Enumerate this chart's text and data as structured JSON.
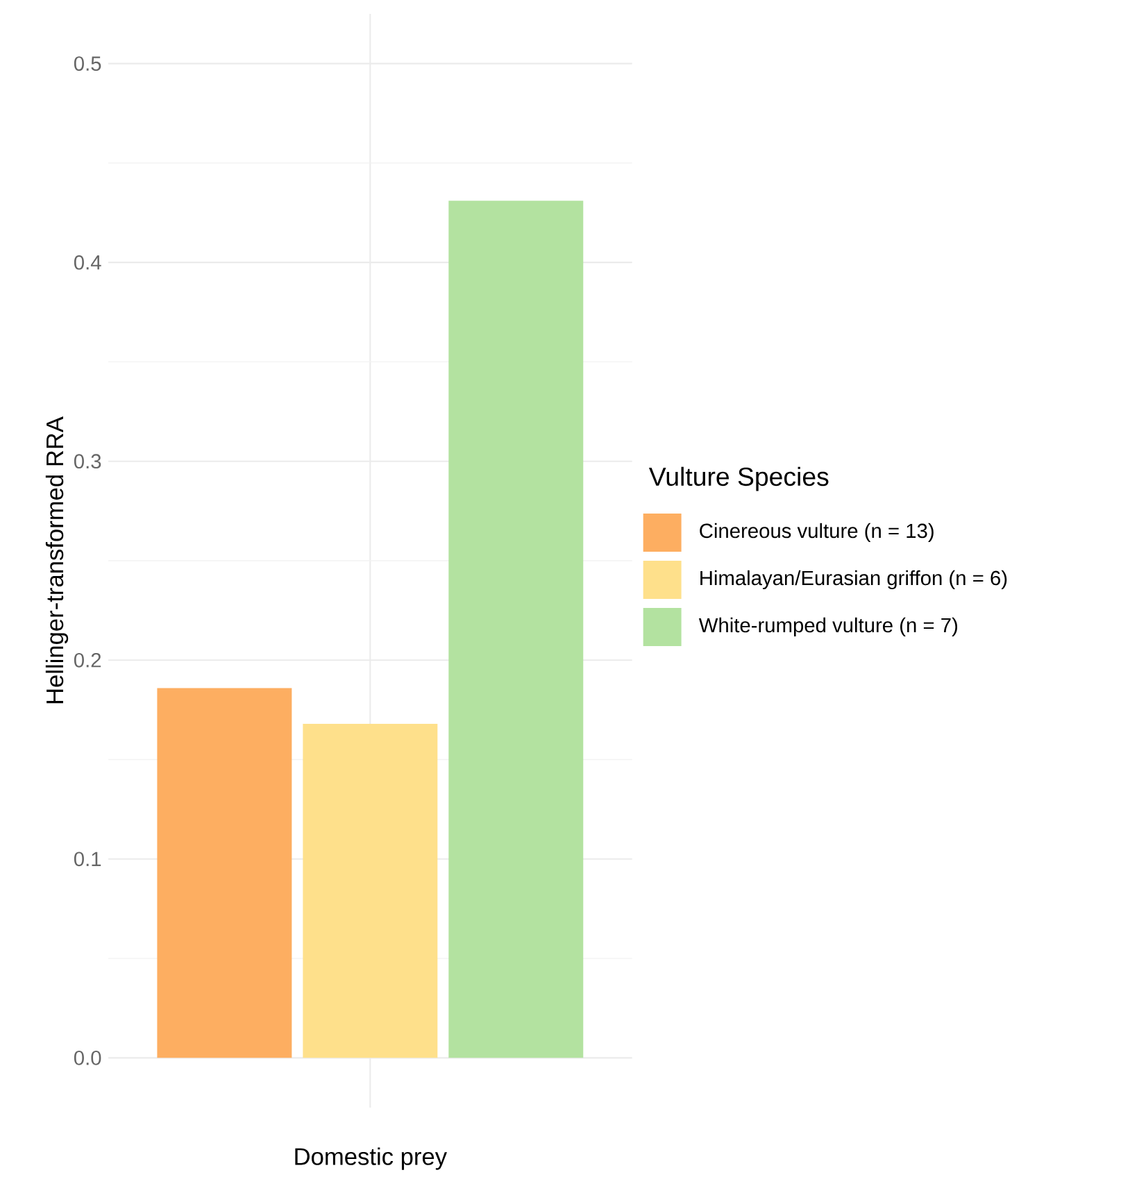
{
  "chart_data": {
    "type": "bar",
    "categories": [
      "Domestic prey"
    ],
    "ylabel": "Hellinger-transformed RRA",
    "legend_title": "Vulture Species",
    "legend": "right",
    "grid": true,
    "ylim": [
      -0.025,
      0.525
    ],
    "yticks": [
      {
        "value": 0,
        "label": "0.0"
      },
      0.1,
      0.2,
      0.3,
      0.4,
      0.5
    ],
    "series": [
      {
        "name": "Cinereous vulture (n = 13)",
        "color": "#fdae61",
        "values": [
          0.186
        ]
      },
      {
        "name": "Himalayan/Eurasian griffon (n = 6)",
        "color": "#fee08b",
        "values": [
          0.168
        ]
      },
      {
        "name": "White-rumped vulture (n = 7)",
        "color": "#b3e2a0",
        "values": [
          0.431
        ]
      }
    ]
  }
}
